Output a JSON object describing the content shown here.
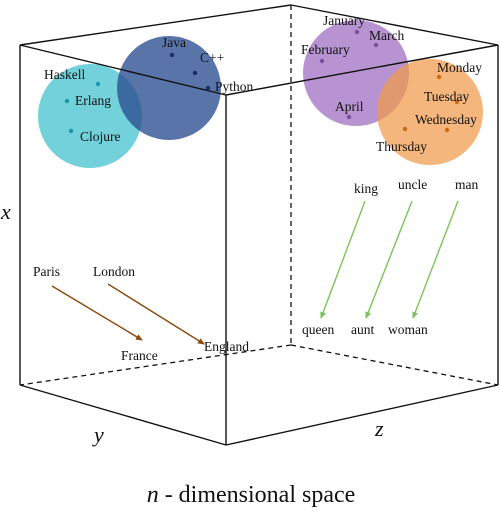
{
  "caption": {
    "variable": "n",
    "rest": " - dimensional space"
  },
  "axes": {
    "x": "x",
    "y": "y",
    "z": "z"
  },
  "clusters": {
    "languages_functional": {
      "color": "#3bbfcc",
      "words": [
        "Haskell",
        "Erlang",
        "Clojure"
      ]
    },
    "languages_imperative": {
      "color": "#2a4d8f",
      "words": [
        "Java",
        "C++",
        "Python"
      ]
    },
    "months": {
      "color": "#9b6bbf",
      "words": [
        "January",
        "February",
        "March",
        "April"
      ]
    },
    "weekdays": {
      "color": "#f09a4a",
      "words": [
        "Monday",
        "Tuesday",
        "Wednesday",
        "Thursday"
      ]
    }
  },
  "analogies_capitals": {
    "color": "#8b4a0e",
    "pairs": [
      {
        "from": "Paris",
        "to": "France"
      },
      {
        "from": "London",
        "to": "England"
      }
    ]
  },
  "analogies_gender": {
    "color": "#7dc35a",
    "pairs": [
      {
        "from": "king",
        "to": "queen"
      },
      {
        "from": "uncle",
        "to": "aunt"
      },
      {
        "from": "man",
        "to": "woman"
      }
    ]
  },
  "colors": {
    "edges": "#111111",
    "dot_functional": "#1a9aa8",
    "dot_imperative": "#1a2f66",
    "dot_months": "#7a4f9e",
    "dot_weekdays": "#d06a12"
  }
}
